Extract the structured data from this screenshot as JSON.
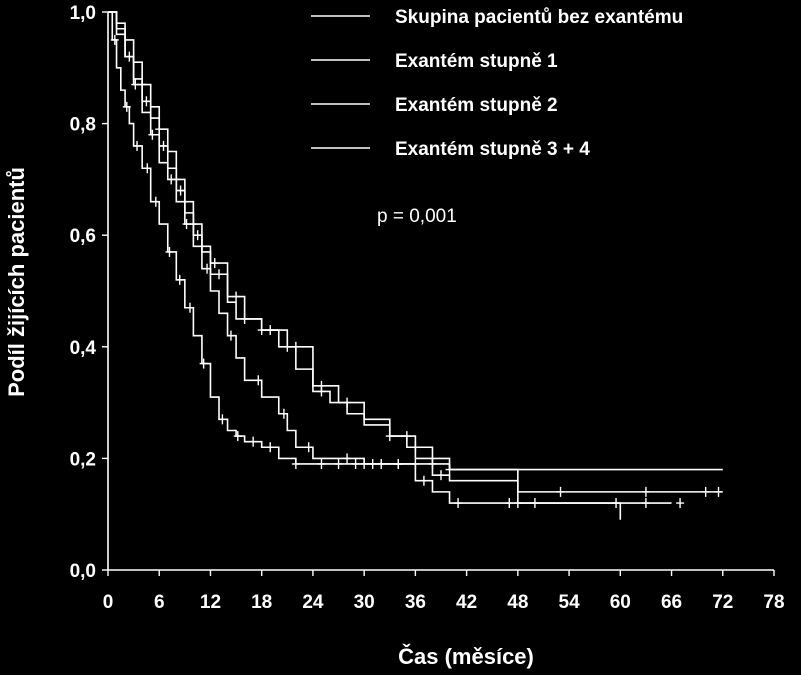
{
  "chart_data": {
    "type": "line",
    "title": "",
    "xlabel": "Čas (měsíce)",
    "ylabel": "Podíl žijících pacientů",
    "xlim": [
      0,
      78
    ],
    "ylim": [
      0.0,
      1.0
    ],
    "x_ticks": [
      "0",
      "6",
      "12",
      "18",
      "24",
      "30",
      "36",
      "42",
      "48",
      "54",
      "60",
      "66",
      "72",
      "78"
    ],
    "y_ticks": [
      "0,0",
      "0,2",
      "0,4",
      "0,6",
      "0,8",
      "1,0"
    ],
    "annotation": "p = 0,001",
    "legend_position": "top-right",
    "series": [
      {
        "name": "Skupina pacientů bez exantému",
        "points": [
          [
            0,
            1.0
          ],
          [
            0.5,
            0.95
          ],
          [
            1,
            0.9
          ],
          [
            1.5,
            0.86
          ],
          [
            2,
            0.83
          ],
          [
            2.5,
            0.8
          ],
          [
            3,
            0.76
          ],
          [
            4,
            0.72
          ],
          [
            5,
            0.66
          ],
          [
            6,
            0.62
          ],
          [
            7,
            0.57
          ],
          [
            8,
            0.52
          ],
          [
            9,
            0.47
          ],
          [
            10,
            0.42
          ],
          [
            11,
            0.37
          ],
          [
            12,
            0.31
          ],
          [
            13,
            0.27
          ],
          [
            14,
            0.25
          ],
          [
            15,
            0.24
          ],
          [
            16,
            0.23
          ],
          [
            18,
            0.22
          ],
          [
            20,
            0.2
          ],
          [
            22,
            0.19
          ],
          [
            30,
            0.19
          ],
          [
            36,
            0.19
          ],
          [
            40,
            0.18
          ],
          [
            48,
            0.18
          ],
          [
            72,
            0.18
          ]
        ],
        "censored_x": [
          0.8,
          2.2,
          3.4,
          4.6,
          5.6,
          7.2,
          8.4,
          9.6,
          11.2,
          13.4,
          15.2,
          17,
          19,
          22,
          25,
          27,
          29,
          30,
          32,
          34,
          36,
          38,
          40
        ]
      },
      {
        "name": "Exantém stupně 1",
        "points": [
          [
            0,
            1.0
          ],
          [
            1,
            0.97
          ],
          [
            2,
            0.92
          ],
          [
            3,
            0.88
          ],
          [
            4,
            0.84
          ],
          [
            5,
            0.81
          ],
          [
            6,
            0.76
          ],
          [
            7,
            0.72
          ],
          [
            8,
            0.68
          ],
          [
            9,
            0.64
          ],
          [
            10,
            0.6
          ],
          [
            11,
            0.57
          ],
          [
            12,
            0.53
          ],
          [
            14,
            0.48
          ],
          [
            15,
            0.45
          ],
          [
            18,
            0.43
          ],
          [
            21,
            0.4
          ],
          [
            24,
            0.33
          ],
          [
            27,
            0.3
          ],
          [
            30,
            0.27
          ],
          [
            33,
            0.24
          ],
          [
            36,
            0.2
          ],
          [
            38,
            0.17
          ],
          [
            40,
            0.16
          ],
          [
            48,
            0.14
          ],
          [
            72,
            0.14
          ]
        ],
        "censored_x": [
          2.5,
          4.5,
          6.5,
          8.5,
          10.5,
          13,
          16,
          19,
          22,
          25,
          28,
          35,
          39,
          53,
          63,
          70,
          71.5
        ]
      },
      {
        "name": "Exantém stupně 2",
        "points": [
          [
            0,
            1.0
          ],
          [
            1,
            0.96
          ],
          [
            2,
            0.92
          ],
          [
            3,
            0.87
          ],
          [
            4,
            0.82
          ],
          [
            5,
            0.78
          ],
          [
            6,
            0.73
          ],
          [
            7,
            0.7
          ],
          [
            8,
            0.66
          ],
          [
            9,
            0.62
          ],
          [
            10,
            0.58
          ],
          [
            11,
            0.54
          ],
          [
            12,
            0.5
          ],
          [
            13,
            0.46
          ],
          [
            14,
            0.42
          ],
          [
            15,
            0.38
          ],
          [
            16,
            0.34
          ],
          [
            18,
            0.31
          ],
          [
            20,
            0.28
          ],
          [
            21,
            0.25
          ],
          [
            22,
            0.22
          ],
          [
            24,
            0.2
          ],
          [
            30,
            0.19
          ],
          [
            36,
            0.16
          ],
          [
            38,
            0.14
          ],
          [
            40,
            0.12
          ],
          [
            49,
            0.12
          ],
          [
            60,
            0.09
          ]
        ],
        "censored_x": [
          3.2,
          5.2,
          7.4,
          9.2,
          11.6,
          14.4,
          17.6,
          20.6,
          23.5,
          28,
          31,
          34,
          37,
          41,
          47,
          50,
          59.5
        ]
      },
      {
        "name": "Exantém stupně 3 + 4",
        "points": [
          [
            0,
            1.0
          ],
          [
            1,
            0.98
          ],
          [
            2,
            0.95
          ],
          [
            3,
            0.91
          ],
          [
            4,
            0.87
          ],
          [
            5,
            0.83
          ],
          [
            6,
            0.79
          ],
          [
            7,
            0.75
          ],
          [
            8,
            0.7
          ],
          [
            9,
            0.66
          ],
          [
            10,
            0.62
          ],
          [
            11,
            0.58
          ],
          [
            12,
            0.55
          ],
          [
            14,
            0.49
          ],
          [
            16,
            0.45
          ],
          [
            18,
            0.43
          ],
          [
            20,
            0.4
          ],
          [
            22,
            0.36
          ],
          [
            24,
            0.32
          ],
          [
            26,
            0.3
          ],
          [
            28,
            0.28
          ],
          [
            30,
            0.26
          ],
          [
            33,
            0.24
          ],
          [
            35,
            0.22
          ],
          [
            38,
            0.2
          ],
          [
            40,
            0.18
          ],
          [
            48,
            0.12
          ],
          [
            66,
            0.12
          ]
        ],
        "censored_x": [
          4,
          6,
          8,
          10,
          12.5,
          15,
          18,
          21,
          25,
          33,
          36,
          48,
          63,
          67
        ]
      }
    ]
  }
}
